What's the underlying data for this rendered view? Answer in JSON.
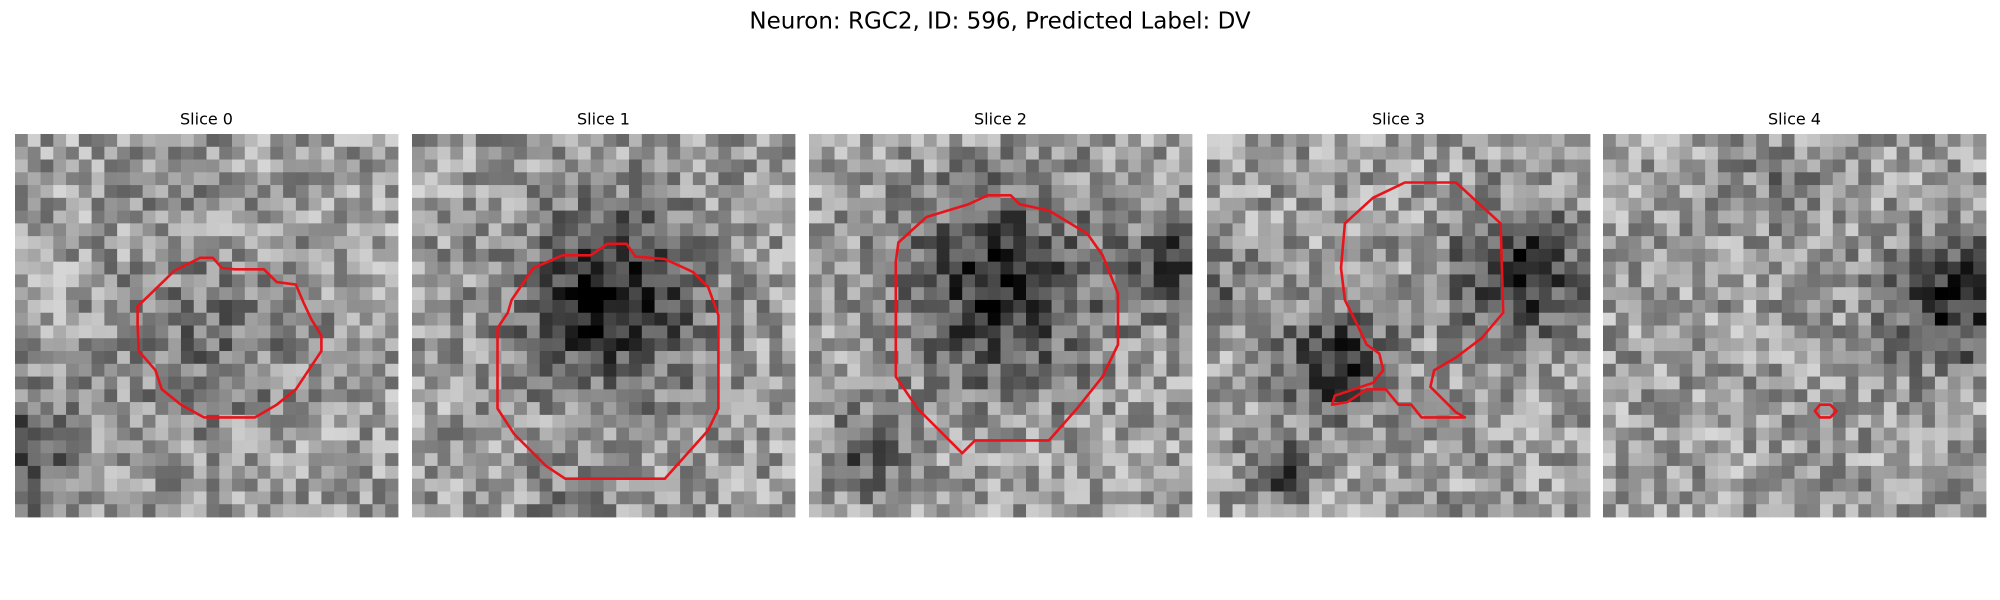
{
  "header": {
    "title": "Neuron: RGC2, ID: 596, Predicted Label: DV"
  },
  "panels": [
    {
      "title": "Slice 0"
    },
    {
      "title": "Slice 1"
    },
    {
      "title": "Slice 2"
    },
    {
      "title": "Slice 3"
    },
    {
      "title": "Slice 4"
    }
  ]
}
